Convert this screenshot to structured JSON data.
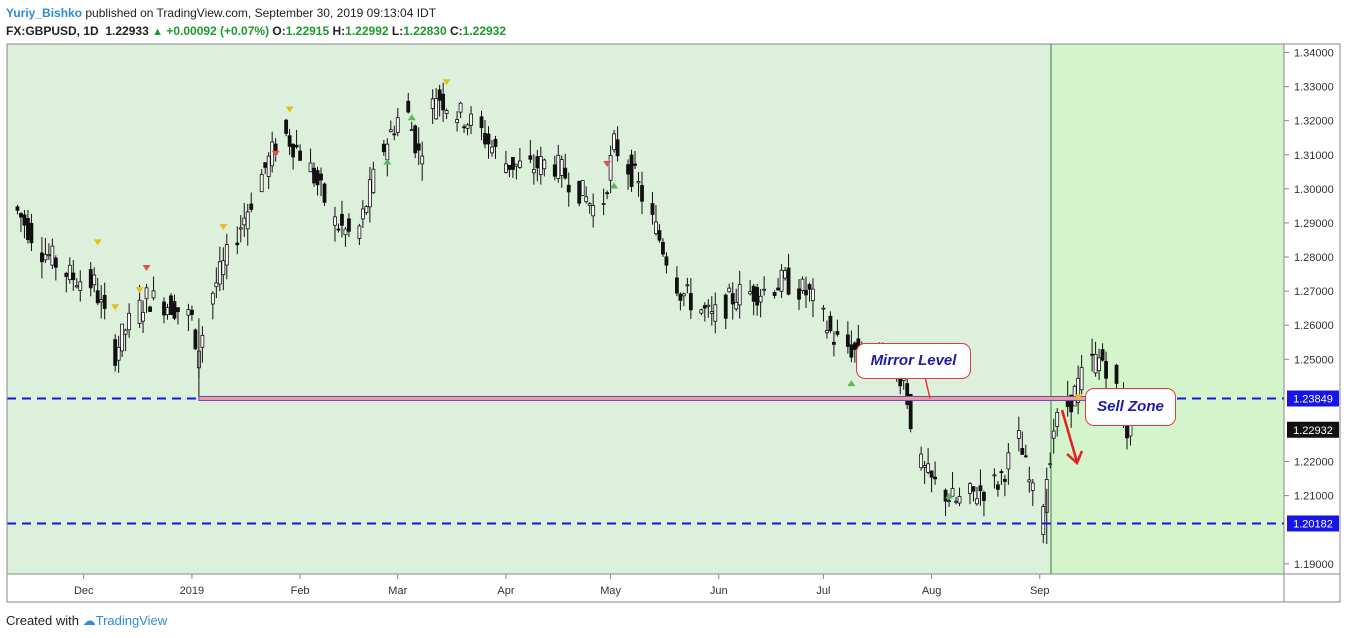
{
  "header": {
    "author": "Yuriy_Bishko",
    "published_text": "published on TradingView.com, September 30, 2019 09:13:04 IDT",
    "symbol": "FX:GBPUSD, 1D",
    "last": "1.22933",
    "change": "+0.00092 (+0.07%)",
    "o_label": "O:",
    "o_value": "1.22915",
    "h_label": "H:",
    "h_value": "1.22992",
    "l_label": "L:",
    "l_value": "1.22830",
    "c_label": "C:",
    "c_value": "1.22932"
  },
  "footer": {
    "created_with": "Created with",
    "brand": "TradingView"
  },
  "annotations": {
    "mirror_level": "Mirror Level",
    "sell_zone": "Sell Zone"
  },
  "colors": {
    "background_fill": "#dcf0dc",
    "future_fill": "#d4f4cc",
    "level_line": "#1515e6",
    "candle": "#111111",
    "zone_fill": "#f08080",
    "zone_border": "#7a3fbf",
    "arrow": "#e62020",
    "marker_red": "#e05050",
    "marker_yellow": "#e2c21a",
    "marker_green": "#5cb85c"
  },
  "chart_data": {
    "type": "candlestick",
    "symbol": "FX:GBPUSD",
    "interval": "1D",
    "x_tick_labels": [
      "Dec",
      "2019",
      "Feb",
      "Mar",
      "Apr",
      "May",
      "Jun",
      "Jul",
      "Aug",
      "Sep"
    ],
    "y_tick_labels": [
      "1.34000",
      "1.33000",
      "1.32000",
      "1.31000",
      "1.30000",
      "1.29000",
      "1.28000",
      "1.27000",
      "1.26000",
      "1.25000",
      "1.22000",
      "1.21000",
      "1.19000"
    ],
    "ylim": [
      1.187,
      1.3425
    ],
    "levels": [
      {
        "value": 1.23849,
        "label": "1.23849"
      },
      {
        "value": 1.20182,
        "label": "1.20182"
      }
    ],
    "last_price": {
      "value": 1.22932,
      "label": "1.22932"
    },
    "mirror_level_range": {
      "from": "2019-01-03",
      "to": "2019-09-23",
      "value": 1.2385
    },
    "sell_zone": {
      "from": "2019-09-23",
      "to": "2019-09-30",
      "y_low": 1.2355,
      "y_high": 1.2392
    },
    "monthly_path": [
      [
        "2018-11-12",
        1.2948
      ],
      [
        "2018-11-20",
        1.2822
      ],
      [
        "2018-11-28",
        1.2745
      ],
      [
        "2018-12-05",
        1.272
      ],
      [
        "2018-12-11",
        1.252
      ],
      [
        "2018-12-14",
        1.259
      ],
      [
        "2018-12-20",
        1.268
      ],
      [
        "2018-12-27",
        1.266
      ],
      [
        "2019-01-02",
        1.262
      ],
      [
        "2019-01-03",
        1.25
      ],
      [
        "2019-01-08",
        1.27
      ],
      [
        "2019-01-15",
        1.287
      ],
      [
        "2019-01-22",
        1.304
      ],
      [
        "2019-01-28",
        1.317
      ],
      [
        "2019-02-04",
        1.308
      ],
      [
        "2019-02-12",
        1.29
      ],
      [
        "2019-02-18",
        1.285
      ],
      [
        "2019-02-25",
        1.31
      ],
      [
        "2019-03-04",
        1.325
      ],
      [
        "2019-03-08",
        1.31
      ],
      [
        "2019-03-13",
        1.328
      ],
      [
        "2019-03-18",
        1.323
      ],
      [
        "2019-03-25",
        1.318
      ],
      [
        "2019-04-01",
        1.308
      ],
      [
        "2019-04-08",
        1.306
      ],
      [
        "2019-04-15",
        1.308
      ],
      [
        "2019-04-22",
        1.301
      ],
      [
        "2019-04-29",
        1.292
      ],
      [
        "2019-05-03",
        1.313
      ],
      [
        "2019-05-09",
        1.303
      ],
      [
        "2019-05-15",
        1.288
      ],
      [
        "2019-05-22",
        1.27
      ],
      [
        "2019-05-31",
        1.262
      ],
      [
        "2019-06-07",
        1.269
      ],
      [
        "2019-06-14",
        1.27
      ],
      [
        "2019-06-21",
        1.273
      ],
      [
        "2019-06-28",
        1.269
      ],
      [
        "2019-07-05",
        1.256
      ],
      [
        "2019-07-12",
        1.252
      ],
      [
        "2019-07-19",
        1.25
      ],
      [
        "2019-07-25",
        1.245
      ],
      [
        "2019-07-29",
        1.22
      ],
      [
        "2019-08-02",
        1.214
      ],
      [
        "2019-08-09",
        1.208
      ],
      [
        "2019-08-15",
        1.211
      ],
      [
        "2019-08-21",
        1.214
      ],
      [
        "2019-08-27",
        1.226
      ],
      [
        "2019-09-02",
        1.202
      ],
      [
        "2019-09-06",
        1.23
      ],
      [
        "2019-09-12",
        1.24
      ],
      [
        "2019-09-16",
        1.249
      ],
      [
        "2019-09-20",
        1.25
      ],
      [
        "2019-09-23",
        1.245
      ],
      [
        "2019-09-25",
        1.236
      ],
      [
        "2019-09-27",
        1.2293
      ]
    ],
    "signal_markers": [
      {
        "date": "2018-12-05",
        "price": 1.284,
        "color": "yellow",
        "dir": "down"
      },
      {
        "date": "2018-12-10",
        "price": 1.265,
        "color": "yellow",
        "dir": "down"
      },
      {
        "date": "2018-12-17",
        "price": 1.27,
        "color": "yellow",
        "dir": "down"
      },
      {
        "date": "2018-12-19",
        "price": 1.2765,
        "color": "red",
        "dir": "down"
      },
      {
        "date": "2019-01-10",
        "price": 1.2885,
        "color": "yellow",
        "dir": "down"
      },
      {
        "date": "2019-01-29",
        "price": 1.323,
        "color": "yellow",
        "dir": "down"
      },
      {
        "date": "2019-01-25",
        "price": 1.31,
        "color": "red",
        "dir": "down"
      },
      {
        "date": "2019-02-26",
        "price": 1.308,
        "color": "green",
        "dir": "up"
      },
      {
        "date": "2019-03-05",
        "price": 1.321,
        "color": "green",
        "dir": "up"
      },
      {
        "date": "2019-03-15",
        "price": 1.331,
        "color": "yellow",
        "dir": "down"
      },
      {
        "date": "2019-04-30",
        "price": 1.307,
        "color": "red",
        "dir": "down"
      },
      {
        "date": "2019-05-02",
        "price": 1.301,
        "color": "green",
        "dir": "up"
      },
      {
        "date": "2019-07-09",
        "price": 1.243,
        "color": "green",
        "dir": "up"
      },
      {
        "date": "2019-08-06",
        "price": 1.21,
        "color": "green",
        "dir": "up"
      },
      {
        "date": "2019-09-12",
        "price": 1.2385,
        "color": "yellow",
        "dir": "down"
      },
      {
        "date": "2019-09-23",
        "price": 1.238,
        "color": "green",
        "dir": "up"
      }
    ]
  }
}
